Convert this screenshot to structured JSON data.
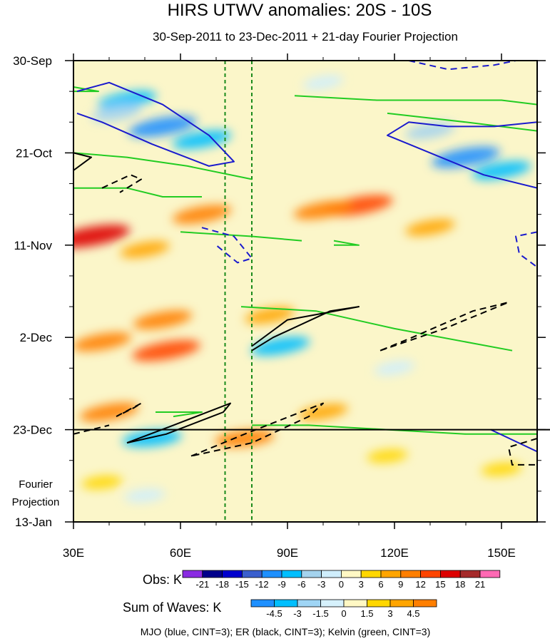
{
  "chart_data": {
    "type": "heatmap",
    "title": "HIRS UTWV anomalies: 20S - 10S",
    "subtitle": "30-Sep-2011 to 23-Dec-2011 + 21-day Fourier Projection",
    "xlabel": "",
    "ylabel": "",
    "x_unit": "degrees longitude (E)",
    "xlim": [
      30,
      160
    ],
    "x_ticks": [
      {
        "value": 30,
        "label": "30E"
      },
      {
        "value": 60,
        "label": "60E"
      },
      {
        "value": 90,
        "label": "90E"
      },
      {
        "value": 120,
        "label": "120E"
      },
      {
        "value": 150,
        "label": "150E"
      }
    ],
    "y_unit": "days since 30-Sep-2011",
    "ylim": [
      0,
      105
    ],
    "y_ticks": [
      {
        "value": 0,
        "label": "30-Sep"
      },
      {
        "value": 21,
        "label": "21-Oct"
      },
      {
        "value": 42,
        "label": "11-Nov"
      },
      {
        "value": 63,
        "label": "2-Dec"
      },
      {
        "value": 84,
        "label": "23-Dec"
      },
      {
        "value": 105,
        "label": "13-Jan"
      }
    ],
    "projection_start": 84,
    "projection_label_line1": "Fourier",
    "projection_label_line2": "Projection",
    "reference_lines_x": [
      72.5,
      80
    ],
    "obs_legend": {
      "label": "Obs: K",
      "levels": [
        "-21",
        "-18",
        "-15",
        "-12",
        "-9",
        "-6",
        "-3",
        "0",
        "3",
        "6",
        "9",
        "12",
        "15",
        "18",
        "21"
      ],
      "colors": [
        "#8a2be2",
        "#00008b",
        "#0000cd",
        "#3a5fcd",
        "#1e90ff",
        "#00bfff",
        "#a4d3ee",
        "#cfeefc",
        "#fff8c4",
        "#ffd700",
        "#ffa500",
        "#ff7f00",
        "#ff4500",
        "#dd0000",
        "#a52a2a",
        "#ff69b4"
      ]
    },
    "waves_legend": {
      "label": "Sum of Waves: K",
      "levels": [
        "-4.5",
        "-3",
        "-1.5",
        "0",
        "1.5",
        "3",
        "4.5"
      ],
      "colors": [
        "#1e90ff",
        "#00bfff",
        "#9fd5f5",
        "#d6f1fc",
        "#fff8c4",
        "#ffd700",
        "#ffa500",
        "#ff7f00"
      ]
    },
    "contour_note": "MJO (blue, CINT=3); ER (black, CINT=3); Kelvin (green, CINT=3)",
    "anomaly_features": [
      {
        "lon": 45,
        "day": 9,
        "value": -9
      },
      {
        "lon": 55,
        "day": 15,
        "value": -12
      },
      {
        "lon": 42,
        "day": 12,
        "value": -6
      },
      {
        "lon": 66,
        "day": 18,
        "value": -9
      },
      {
        "lon": 100,
        "day": 5,
        "value": -3
      },
      {
        "lon": 140,
        "day": 22,
        "value": -12
      },
      {
        "lon": 150,
        "day": 25,
        "value": -9
      },
      {
        "lon": 130,
        "day": 16,
        "value": -6
      },
      {
        "lon": 110,
        "day": 33,
        "value": 12
      },
      {
        "lon": 100,
        "day": 34,
        "value": 9
      },
      {
        "lon": 66,
        "day": 35,
        "value": 9
      },
      {
        "lon": 35,
        "day": 40,
        "value": 15
      },
      {
        "lon": 50,
        "day": 43,
        "value": 6
      },
      {
        "lon": 130,
        "day": 38,
        "value": 6
      },
      {
        "lon": 55,
        "day": 59,
        "value": 9
      },
      {
        "lon": 85,
        "day": 58,
        "value": 6
      },
      {
        "lon": 38,
        "day": 64,
        "value": 9
      },
      {
        "lon": 56,
        "day": 66,
        "value": 12
      },
      {
        "lon": 88,
        "day": 65,
        "value": -9
      },
      {
        "lon": 120,
        "day": 70,
        "value": -3
      },
      {
        "lon": 40,
        "day": 80,
        "value": 9
      },
      {
        "lon": 100,
        "day": 80,
        "value": 6
      },
      {
        "lon": 52,
        "day": 86,
        "value": -9
      },
      {
        "lon": 78,
        "day": 86,
        "value": 9
      },
      {
        "lon": 118,
        "day": 90,
        "value": 3
      },
      {
        "lon": 150,
        "day": 93,
        "value": 3
      },
      {
        "lon": 50,
        "day": 99,
        "value": -3
      },
      {
        "lon": 38,
        "day": 96,
        "value": 3
      }
    ],
    "mjo_contours": [
      {
        "style": "solid",
        "points": [
          [
            31,
            7
          ],
          [
            40,
            5
          ],
          [
            55,
            10
          ],
          [
            68,
            17
          ],
          [
            75,
            23
          ],
          [
            68,
            24
          ],
          [
            52,
            19
          ],
          [
            38,
            14
          ],
          [
            31,
            12
          ]
        ]
      },
      {
        "style": "solid",
        "points": [
          [
            160,
            14
          ],
          [
            148,
            15
          ],
          [
            135,
            15
          ],
          [
            124,
            14
          ],
          [
            118,
            17
          ],
          [
            130,
            21
          ],
          [
            145,
            26
          ],
          [
            160,
            29
          ]
        ]
      },
      {
        "style": "dashed",
        "points": [
          [
            124,
            0
          ],
          [
            135,
            2
          ],
          [
            148,
            1
          ],
          [
            154,
            0
          ]
        ]
      },
      {
        "style": "dashed",
        "points": [
          [
            66,
            38
          ],
          [
            75,
            40
          ],
          [
            80,
            45
          ],
          [
            76,
            46
          ],
          [
            70,
            42
          ]
        ]
      },
      {
        "style": "dashed",
        "points": [
          [
            160,
            39
          ],
          [
            154,
            40
          ],
          [
            155,
            44
          ],
          [
            160,
            47
          ]
        ]
      },
      {
        "style": "solid",
        "points": [
          [
            147,
            84
          ],
          [
            160,
            89
          ]
        ]
      }
    ],
    "er_contours": [
      {
        "style": "solid",
        "points": [
          [
            30,
            21
          ],
          [
            35,
            22
          ],
          [
            30,
            25
          ]
        ]
      },
      {
        "style": "dashed",
        "points": [
          [
            38,
            29
          ],
          [
            46,
            26
          ],
          [
            49,
            27
          ],
          [
            43,
            30
          ]
        ]
      },
      {
        "style": "solid",
        "points": [
          [
            80,
            65
          ],
          [
            90,
            59
          ],
          [
            110,
            56
          ],
          [
            102,
            57
          ],
          [
            86,
            63
          ],
          [
            80,
            66
          ]
        ]
      },
      {
        "style": "dashed",
        "points": [
          [
            116,
            66
          ],
          [
            134,
            61
          ],
          [
            152,
            55
          ],
          [
            142,
            57
          ],
          [
            125,
            63
          ],
          [
            116,
            66
          ]
        ]
      },
      {
        "style": "dashed",
        "points": [
          [
            42,
            81
          ],
          [
            49,
            78
          ],
          [
            47,
            79
          ],
          [
            42,
            81
          ]
        ]
      },
      {
        "style": "solid",
        "points": [
          [
            45,
            87
          ],
          [
            58,
            83
          ],
          [
            74,
            78
          ],
          [
            72,
            80
          ],
          [
            56,
            85
          ],
          [
            45,
            87
          ]
        ]
      },
      {
        "style": "dashed",
        "points": [
          [
            63,
            90
          ],
          [
            78,
            85
          ],
          [
            100,
            78
          ],
          [
            96,
            81
          ],
          [
            80,
            87
          ],
          [
            63,
            90
          ]
        ]
      },
      {
        "style": "dashed",
        "points": [
          [
            30,
            85
          ],
          [
            40,
            83
          ]
        ]
      },
      {
        "style": "dashed",
        "points": [
          [
            160,
            86
          ],
          [
            152,
            88
          ],
          [
            153,
            92
          ],
          [
            160,
            92
          ]
        ]
      }
    ],
    "kelvin_contours": [
      {
        "points": [
          [
            30,
            21
          ],
          [
            45,
            22
          ],
          [
            62,
            24
          ],
          [
            80,
            27
          ]
        ]
      },
      {
        "points": [
          [
            30,
            29
          ],
          [
            45,
            29
          ],
          [
            55,
            31
          ],
          [
            66,
            31
          ]
        ]
      },
      {
        "points": [
          [
            30,
            6
          ],
          [
            37,
            7
          ],
          [
            30,
            7
          ]
        ]
      },
      {
        "points": [
          [
            92,
            8
          ],
          [
            115,
            9
          ],
          [
            150,
            9
          ],
          [
            160,
            10
          ]
        ]
      },
      {
        "points": [
          [
            118,
            12
          ],
          [
            140,
            14
          ],
          [
            160,
            16
          ]
        ]
      },
      {
        "points": [
          [
            77,
            56
          ],
          [
            98,
            57
          ],
          [
            120,
            61
          ],
          [
            153,
            66
          ]
        ]
      },
      {
        "points": [
          [
            60,
            39
          ],
          [
            80,
            40
          ],
          [
            94,
            41
          ]
        ]
      },
      {
        "points": [
          [
            103,
            41
          ],
          [
            110,
            42
          ],
          [
            103,
            42
          ]
        ]
      },
      {
        "points": [
          [
            53,
            80
          ],
          [
            66,
            80
          ],
          [
            58,
            81
          ]
        ]
      },
      {
        "points": [
          [
            80,
            83
          ],
          [
            96,
            83
          ],
          [
            118,
            84
          ],
          [
            140,
            85
          ],
          [
            160,
            85
          ]
        ]
      }
    ]
  }
}
